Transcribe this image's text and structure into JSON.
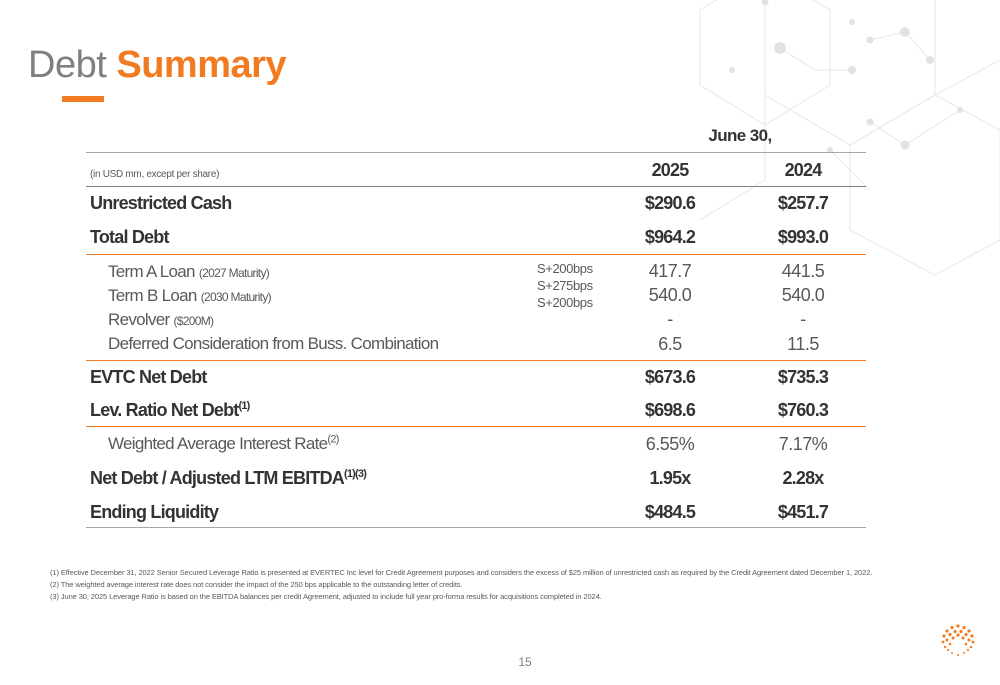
{
  "title": {
    "light": "Debt",
    "bold": "Summary"
  },
  "period_header": "June 30,",
  "units_note": "(in USD mm, except per share)",
  "years": [
    "2025",
    "2024"
  ],
  "rows": {
    "unrestricted_cash": {
      "label": "Unrestricted Cash",
      "v2025": "$290.6",
      "v2024": "$257.7"
    },
    "total_debt": {
      "label": "Total Debt",
      "v2025": "$964.2",
      "v2024": "$993.0"
    },
    "term_a": {
      "label": "Term A Loan",
      "note": "(2027 Maturity)",
      "spread": "S+200bps",
      "v2025": "417.7",
      "v2024": "441.5"
    },
    "term_b": {
      "label": "Term B Loan",
      "note": "(2030 Maturity)",
      "spread": "S+275bps",
      "v2025": "540.0",
      "v2024": "540.0"
    },
    "revolver": {
      "label": "Revolver",
      "note": "($200M)",
      "spread": "S+200bps",
      "v2025": "-",
      "v2024": "-"
    },
    "deferred": {
      "label": "Deferred Consideration from Buss. Combination",
      "v2025": "6.5",
      "v2024": "11.5"
    },
    "evtc_net_debt": {
      "label": "EVTC Net Debt",
      "v2025": "$673.6",
      "v2024": "$735.3"
    },
    "lev_ratio": {
      "label": "Lev. Ratio Net Debt",
      "sup": "(1)",
      "v2025": "$698.6",
      "v2024": "$760.3"
    },
    "wair": {
      "label": "Weighted Average Interest Rate",
      "sup": "(2)",
      "v2025": "6.55%",
      "v2024": "7.17%"
    },
    "net_debt_ebitda": {
      "label": "Net Debt / Adjusted LTM EBITDA",
      "sup": "(1)(3)",
      "v2025": "1.95x",
      "v2024": "2.28x"
    },
    "ending_liquidity": {
      "label": "Ending Liquidity",
      "v2025": "$484.5",
      "v2024": "$451.7"
    }
  },
  "footnotes": [
    "(1) Effective December 31, 2022 Senior Secured Leverage Ratio is presented at EVERTEC Inc level for Credit Agreement purposes and considers the excess of $25 million of unrestricted cash as required by the Credit Agreement dated December 1, 2022.",
    "(2) The weighted average interest rate does not consider the impact of the 250 bps applicable to the outstanding letter of credits.",
    "(3) June 30, 2025 Leverage Ratio is based on the EBITDA balances per credit Agreement, adjusted to include full year pro-forma results for acquisitions completed in 2024."
  ],
  "page_number": "15",
  "colors": {
    "accent": "#f27b21",
    "title_gray": "#7f7f7f",
    "text": "#333333",
    "deco": "#e6e6e6"
  }
}
